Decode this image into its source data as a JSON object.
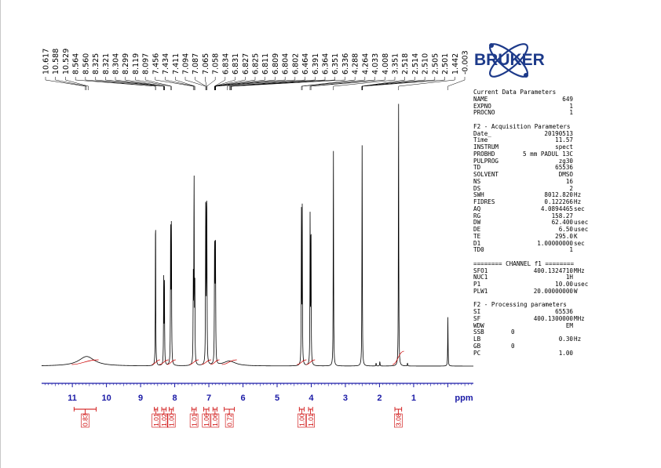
{
  "chart_data": {
    "type": "line",
    "title": "",
    "xlabel": "ppm",
    "ylabel": "",
    "xlim": [
      11.9,
      -0.75
    ],
    "x_reversed": true,
    "x_ticks": [
      11,
      10,
      9,
      8,
      7,
      6,
      5,
      4,
      3,
      2,
      1
    ],
    "unit_label": "ppm",
    "grid": false,
    "colors": {
      "spectrum": "#000000",
      "integral": "#cc0000",
      "axis": "#1a1aa6"
    },
    "peak_labels": [
      "10.617",
      "10.588",
      "10.529",
      "8.564",
      "8.560",
      "8.325",
      "8.321",
      "8.304",
      "8.299",
      "8.119",
      "8.097",
      "7.456",
      "7.434",
      "7.411",
      "7.094",
      "7.087",
      "7.065",
      "7.058",
      "6.834",
      "6.831",
      "6.827",
      "6.825",
      "6.811",
      "6.809",
      "6.804",
      "6.802",
      "6.464",
      "6.391",
      "6.364",
      "6.351",
      "6.336",
      "4.288",
      "4.264",
      "4.033",
      "4.008",
      "3.351",
      "2.518",
      "2.514",
      "2.510",
      "2.505",
      "2.501",
      "1.442",
      "-0.003"
    ],
    "integrals": [
      {
        "from": 10.95,
        "to": 10.3,
        "value": "0.83"
      },
      {
        "from": 8.6,
        "to": 8.5,
        "value": "1.01"
      },
      {
        "from": 8.38,
        "to": 8.25,
        "value": "1.02"
      },
      {
        "from": 8.16,
        "to": 8.04,
        "value": "1.00"
      },
      {
        "from": 7.5,
        "to": 7.37,
        "value": "1.01"
      },
      {
        "from": 7.15,
        "to": 7.0,
        "value": "1.06"
      },
      {
        "from": 6.88,
        "to": 6.76,
        "value": "1.06"
      },
      {
        "from": 6.55,
        "to": 6.25,
        "value": "0.72"
      },
      {
        "from": 4.35,
        "to": 4.21,
        "value": "1.00"
      },
      {
        "from": 4.08,
        "to": 3.96,
        "value": "1.01"
      },
      {
        "from": 1.55,
        "to": 1.35,
        "value": "3.08"
      }
    ],
    "peaks": [
      {
        "x": 10.58,
        "y": 0.035,
        "w": 0.28
      },
      {
        "x": 8.562,
        "y": 0.6
      },
      {
        "x": 8.323,
        "y": 0.31
      },
      {
        "x": 8.302,
        "y": 0.31
      },
      {
        "x": 8.119,
        "y": 0.55
      },
      {
        "x": 8.097,
        "y": 0.55
      },
      {
        "x": 7.456,
        "y": 0.3
      },
      {
        "x": 7.434,
        "y": 0.71
      },
      {
        "x": 7.411,
        "y": 0.3
      },
      {
        "x": 7.094,
        "y": 0.39
      },
      {
        "x": 7.087,
        "y": 0.38
      },
      {
        "x": 7.065,
        "y": 0.39
      },
      {
        "x": 7.058,
        "y": 0.37
      },
      {
        "x": 6.834,
        "y": 0.28
      },
      {
        "x": 6.827,
        "y": 0.27
      },
      {
        "x": 6.811,
        "y": 0.29
      },
      {
        "x": 6.804,
        "y": 0.28
      },
      {
        "x": 6.4,
        "y": 0.018,
        "w": 0.22
      },
      {
        "x": 4.288,
        "y": 0.56
      },
      {
        "x": 4.264,
        "y": 0.56
      },
      {
        "x": 4.033,
        "y": 0.55
      },
      {
        "x": 4.008,
        "y": 0.55
      },
      {
        "x": 3.351,
        "y": 0.82
      },
      {
        "x": 2.51,
        "y": 0.74
      },
      {
        "x": 2.505,
        "y": 0.12
      },
      {
        "x": 2.1,
        "y": 0.012
      },
      {
        "x": 1.99,
        "y": 0.018
      },
      {
        "x": 1.442,
        "y": 1.0
      },
      {
        "x": 1.18,
        "y": 0.012
      },
      {
        "x": -0.003,
        "y": 0.18
      }
    ]
  },
  "logo": {
    "text": "BRUKER",
    "color": "#1d3a8a"
  },
  "params": {
    "section1": [
      {
        "k": "Current Data Parameters",
        "v": "",
        "u": ""
      },
      {
        "k": "NAME",
        "v": "649",
        "u": ""
      },
      {
        "k": "EXPNO",
        "v": "1",
        "u": ""
      },
      {
        "k": "PROCNO",
        "v": "1",
        "u": ""
      }
    ],
    "section2": [
      {
        "k": "F2 - Acquisition Parameters",
        "v": "",
        "u": ""
      },
      {
        "k": "Date_",
        "v": "20190513",
        "u": ""
      },
      {
        "k": "Time",
        "v": "11.57",
        "u": ""
      },
      {
        "k": "INSTRUM",
        "v": "spect",
        "u": ""
      },
      {
        "k": "PROBHD",
        "v": "5 mm PADUL 13C",
        "u": ""
      },
      {
        "k": "PULPROG",
        "v": "zg30",
        "u": ""
      },
      {
        "k": "TD",
        "v": "65536",
        "u": ""
      },
      {
        "k": "SOLVENT",
        "v": "DMSO",
        "u": ""
      },
      {
        "k": "NS",
        "v": "16",
        "u": ""
      },
      {
        "k": "DS",
        "v": "2",
        "u": ""
      },
      {
        "k": "SWH",
        "v": "8012.820",
        "u": "Hz"
      },
      {
        "k": "FIDRES",
        "v": "0.122266",
        "u": "Hz"
      },
      {
        "k": "AQ",
        "v": "4.0894465",
        "u": "sec"
      },
      {
        "k": "RG",
        "v": "158.27",
        "u": ""
      },
      {
        "k": "DW",
        "v": "62.400",
        "u": "usec"
      },
      {
        "k": "DE",
        "v": "6.50",
        "u": "usec"
      },
      {
        "k": "TE",
        "v": "295.0",
        "u": "K"
      },
      {
        "k": "D1",
        "v": "1.00000000",
        "u": "sec"
      },
      {
        "k": "TD0",
        "v": "1",
        "u": ""
      }
    ],
    "section3": [
      {
        "k": "======== CHANNEL f1 ========",
        "v": "",
        "u": ""
      },
      {
        "k": "SFO1",
        "v": "400.1324710",
        "u": "MHz"
      },
      {
        "k": "NUC1",
        "v": "1H",
        "u": ""
      },
      {
        "k": "P1",
        "v": "10.00",
        "u": "usec"
      },
      {
        "k": "PLW1",
        "v": "20.00000000",
        "u": "W"
      }
    ],
    "section4": [
      {
        "k": "F2 - Processing parameters",
        "v": "",
        "u": ""
      },
      {
        "k": "SI",
        "v": "65536",
        "u": ""
      },
      {
        "k": "SF",
        "v": "400.1300000",
        "u": "MHz"
      },
      {
        "k": "WDW",
        "v": "EM",
        "u": ""
      },
      {
        "k": "SSB",
        "v": "0",
        "u": "",
        "leftval": true
      },
      {
        "k": "LB",
        "v": "0.30",
        "u": "Hz"
      },
      {
        "k": "GB",
        "v": "0",
        "u": "",
        "leftval": true
      },
      {
        "k": "PC",
        "v": "1.00",
        "u": ""
      }
    ]
  }
}
